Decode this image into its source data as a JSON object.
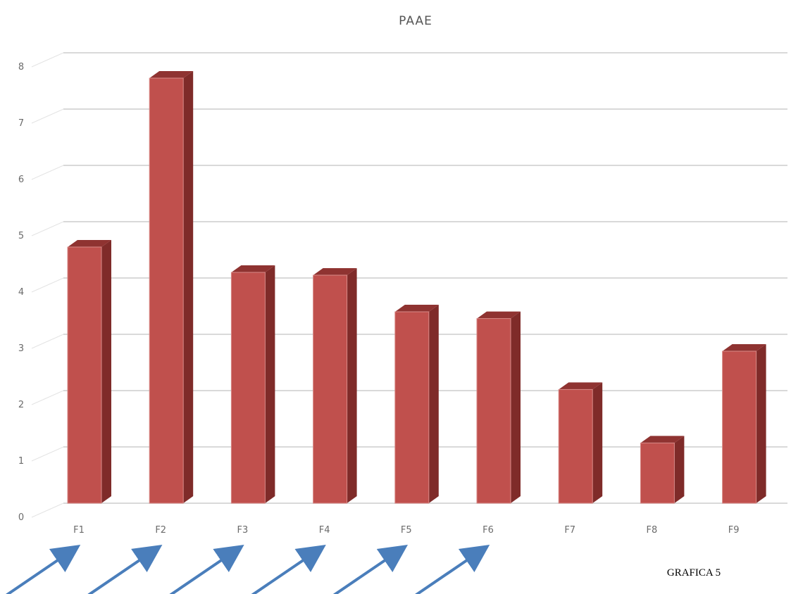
{
  "chart_data": {
    "type": "bar",
    "title": "PAAE",
    "categories": [
      "F1",
      "F2",
      "F3",
      "F4",
      "F5",
      "F6",
      "F7",
      "F8",
      "F9"
    ],
    "values": [
      4.55,
      7.55,
      4.1,
      4.05,
      3.4,
      3.28,
      2.02,
      1.07,
      2.7
    ],
    "ylim": [
      0,
      8
    ],
    "yticks": [
      0,
      1,
      2,
      3,
      4,
      5,
      6,
      7,
      8
    ],
    "xlabel": "",
    "ylabel": "",
    "grid": true,
    "legend": "none",
    "colors": {
      "bar_front": "#c0504d",
      "bar_side": "#7f2b29",
      "bar_top": "#8f3331"
    }
  },
  "caption": "GRAFICA 5",
  "arrows": {
    "color": "#4a7ebb",
    "marked_categories": [
      "F1",
      "F2",
      "F3",
      "F4",
      "F5",
      "F6"
    ]
  }
}
